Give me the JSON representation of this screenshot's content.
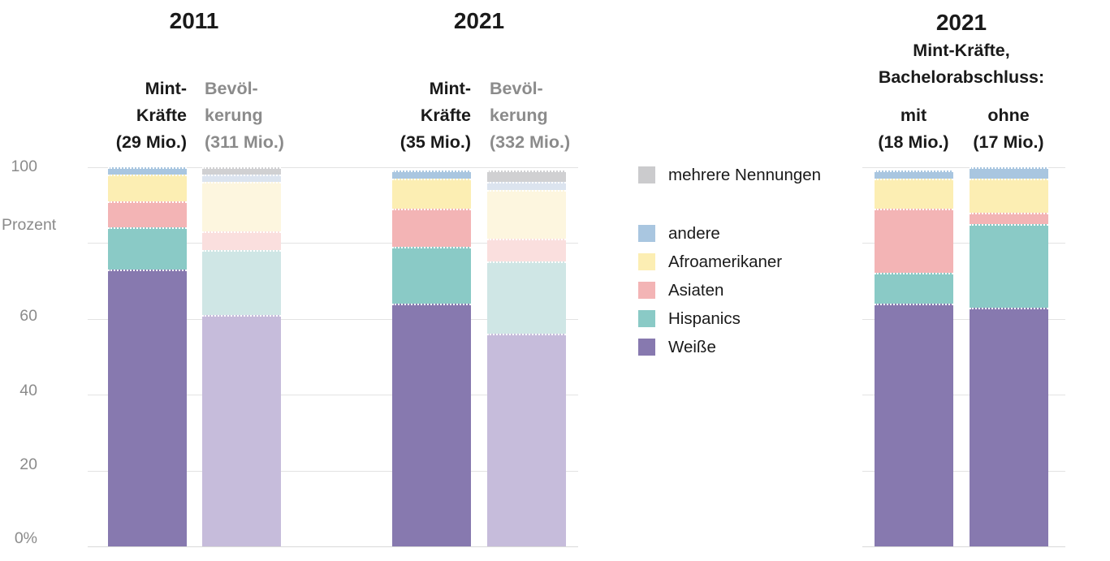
{
  "chart_data": {
    "type": "bar",
    "variant": "stacked-column-percent",
    "title": "",
    "ylabel": "Prozent",
    "ylim": [
      0,
      100
    ],
    "grid": true,
    "yaxis": {
      "title": "Prozent",
      "ticks": [
        {
          "label": "100",
          "value": 100
        },
        {
          "label": "60",
          "value": 60
        },
        {
          "label": "40",
          "value": 40
        },
        {
          "label": "20",
          "value": 20
        },
        {
          "label": "0%",
          "value": 0
        }
      ],
      "gridline_values": [
        0,
        20,
        40,
        60,
        80,
        100
      ]
    },
    "stack_order_bottom_to_top": [
      "weisse",
      "hispanics",
      "asiaten",
      "afroamerikaner",
      "andere",
      "mehrere_nennungen"
    ],
    "legend": {
      "position": "center-right-of-left-plot",
      "entries": [
        {
          "key": "mehrere_nennungen",
          "label": "mehrere Nennungen",
          "color": "#cbcbcd"
        },
        {
          "key": "andere",
          "label": "andere",
          "color": "#a9c6e0"
        },
        {
          "key": "afroamerikaner",
          "label": "Afroamerikaner",
          "color": "#fceeb3"
        },
        {
          "key": "asiaten",
          "label": "Asiaten",
          "color": "#f3b4b5"
        },
        {
          "key": "hispanics",
          "label": "Hispanics",
          "color": "#8acac6"
        },
        {
          "key": "weisse",
          "label": "Weiße",
          "color": "#8779af"
        }
      ]
    },
    "light_palette": {
      "mehrere_nennungen": "#d0d0d2",
      "andere": "#dce4ef",
      "afroamerikaner": "#fdf6df",
      "asiaten": "#fadfde",
      "hispanics": "#cfe6e5",
      "weisse": "#c6bcdb"
    },
    "groups": [
      {
        "title_lines": [
          "2011"
        ],
        "columns": [
          {
            "id": "mint-2011",
            "label_lines": [
              "Mint-",
              "Kräfte",
              "(29 Mio.)"
            ],
            "palette": "strong",
            "values": {
              "weisse": 73,
              "hispanics": 11,
              "asiaten": 7,
              "afroamerikaner": 7,
              "andere": 2,
              "mehrere_nennungen": 0
            }
          },
          {
            "id": "bevoelkerung-2011",
            "label_lines": [
              "Bevöl-",
              "kerung",
              "(311 Mio.)"
            ],
            "palette": "light",
            "values": {
              "weisse": 61,
              "hispanics": 17,
              "asiaten": 5,
              "afroamerikaner": 13,
              "andere": 2,
              "mehrere_nennungen": 2
            }
          }
        ]
      },
      {
        "title_lines": [
          "2021"
        ],
        "columns": [
          {
            "id": "mint-2021",
            "label_lines": [
              "Mint-",
              "Kräfte",
              "(35 Mio.)"
            ],
            "palette": "strong",
            "values": {
              "weisse": 64,
              "hispanics": 15,
              "asiaten": 10,
              "afroamerikaner": 8,
              "andere": 2,
              "mehrere_nennungen": 0
            }
          },
          {
            "id": "bevoelkerung-2021",
            "label_lines": [
              "Bevöl-",
              "kerung",
              "(332 Mio.)"
            ],
            "palette": "light",
            "values": {
              "weisse": 56,
              "hispanics": 19,
              "asiaten": 6,
              "afroamerikaner": 13,
              "andere": 2,
              "mehrere_nennungen": 3
            }
          }
        ]
      },
      {
        "title_lines": [
          "2021",
          "Mint-Kräfte,",
          "Bachelorabschluss:"
        ],
        "columns": [
          {
            "id": "mit-bachelor",
            "label_lines": [
              "mit",
              "(18 Mio.)"
            ],
            "palette": "strong",
            "values": {
              "weisse": 64,
              "hispanics": 8,
              "asiaten": 17,
              "afroamerikaner": 8,
              "andere": 2,
              "mehrere_nennungen": 0
            }
          },
          {
            "id": "ohne-bachelor",
            "label_lines": [
              "ohne",
              "(17 Mio.)"
            ],
            "palette": "strong",
            "values": {
              "weisse": 63,
              "hispanics": 22,
              "asiaten": 3,
              "afroamerikaner": 9,
              "andere": 3,
              "mehrere_nennungen": 0
            }
          }
        ]
      }
    ]
  }
}
